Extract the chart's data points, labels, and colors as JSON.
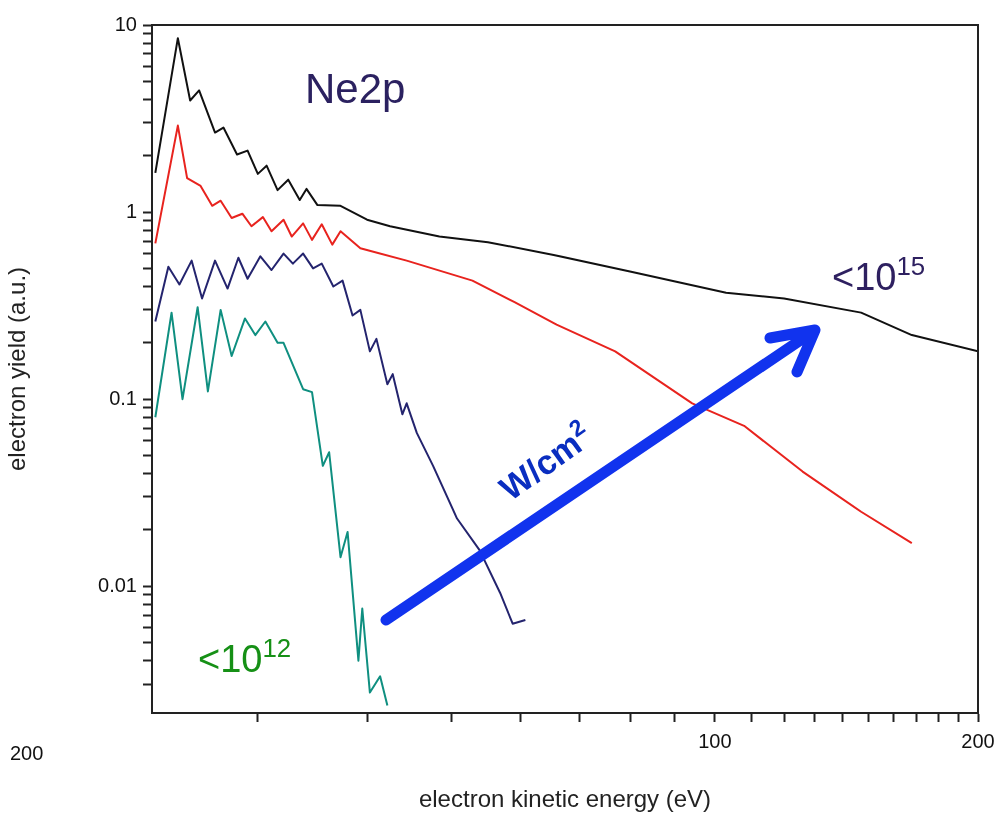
{
  "chart_data": {
    "type": "line",
    "xlabel": "electron kinetic energy (eV)",
    "ylabel": "electron yield (a.u.)",
    "log": "xy",
    "grid": false,
    "legend": false,
    "xlim": [
      22.7,
      200
    ],
    "ylim": [
      0.0021,
      10
    ],
    "xticks": [
      {
        "value": 30,
        "label": null
      },
      {
        "value": 40,
        "label": null
      },
      {
        "value": 50,
        "label": null
      },
      {
        "value": 60,
        "label": null
      },
      {
        "value": 70,
        "label": null
      },
      {
        "value": 80,
        "label": null
      },
      {
        "value": 90,
        "label": null
      },
      100,
      {
        "value": 110,
        "label": null
      },
      {
        "value": 120,
        "label": null
      },
      {
        "value": 130,
        "label": null
      },
      {
        "value": 140,
        "label": null
      },
      {
        "value": 150,
        "label": null
      },
      {
        "value": 160,
        "label": null
      },
      {
        "value": 170,
        "label": null
      },
      {
        "value": 180,
        "label": null
      },
      {
        "value": 190,
        "label": null
      },
      200
    ],
    "yticks": [
      {
        "value": 0.003,
        "label": null
      },
      {
        "value": 0.004,
        "label": null
      },
      {
        "value": 0.005,
        "label": null
      },
      {
        "value": 0.006,
        "label": null
      },
      {
        "value": 0.007,
        "label": null
      },
      {
        "value": 0.008,
        "label": null
      },
      {
        "value": 0.009,
        "label": null
      },
      0.01,
      {
        "value": 0.02,
        "label": null
      },
      {
        "value": 0.03,
        "label": null
      },
      {
        "value": 0.04,
        "label": null
      },
      {
        "value": 0.05,
        "label": null
      },
      {
        "value": 0.06,
        "label": null
      },
      {
        "value": 0.07,
        "label": null
      },
      {
        "value": 0.08,
        "label": null
      },
      {
        "value": 0.09,
        "label": null
      },
      0.1,
      {
        "value": 0.2,
        "label": null
      },
      {
        "value": 0.3,
        "label": null
      },
      {
        "value": 0.4,
        "label": null
      },
      {
        "value": 0.5,
        "label": null
      },
      {
        "value": 0.6,
        "label": null
      },
      {
        "value": 0.7,
        "label": null
      },
      {
        "value": 0.8,
        "label": null
      },
      {
        "value": 0.9,
        "label": null
      },
      1,
      {
        "value": 2,
        "label": null
      },
      {
        "value": 3,
        "label": null
      },
      {
        "value": 4,
        "label": null
      },
      {
        "value": 5,
        "label": null
      },
      {
        "value": 6,
        "label": null
      },
      {
        "value": 7,
        "label": null
      },
      {
        "value": 8,
        "label": null
      },
      {
        "value": 9,
        "label": null
      },
      10
    ],
    "annotations": [
      "Ne2p",
      "W/cm$^{2}$",
      "200"
    ],
    "series": [
      {
        "name": "<10$^{15}$",
        "color": "#111111",
        "x": [
          22.9,
          24.3,
          25.1,
          25.7,
          26.8,
          27.4,
          28.4,
          29.2,
          30.0,
          30.7,
          31.6,
          32.5,
          33.5,
          34.1,
          35.1,
          37.3,
          40.0,
          42.5,
          48.4,
          55.0,
          65.4,
          80.2,
          103,
          120,
          147,
          168,
          200
        ],
        "values": [
          1.62,
          8.5,
          3.95,
          4.47,
          2.66,
          2.83,
          2.03,
          2.13,
          1.6,
          1.77,
          1.31,
          1.49,
          1.16,
          1.33,
          1.09,
          1.08,
          0.91,
          0.84,
          0.74,
          0.69,
          0.59,
          0.48,
          0.37,
          0.345,
          0.29,
          0.22,
          0.18
        ]
      },
      {
        "color": "#e8231e",
        "x": [
          22.9,
          24.3,
          24.9,
          25.8,
          26.6,
          27.2,
          28.0,
          28.8,
          29.5,
          30.4,
          31.1,
          32.1,
          32.8,
          33.8,
          34.6,
          35.5,
          36.5,
          37.3,
          39.3,
          44.4,
          52.8,
          59.0,
          65.9,
          76.9,
          94.2,
          108,
          126,
          147,
          168
        ],
        "values": [
          0.68,
          2.9,
          1.52,
          1.38,
          1.08,
          1.15,
          0.93,
          0.98,
          0.84,
          0.94,
          0.79,
          0.91,
          0.74,
          0.87,
          0.71,
          0.86,
          0.67,
          0.79,
          0.64,
          0.55,
          0.43,
          0.33,
          0.25,
          0.18,
          0.095,
          0.072,
          0.041,
          0.025,
          0.017
        ]
      },
      {
        "color": "#24246e",
        "x": [
          22.9,
          23.7,
          24.4,
          25.2,
          25.9,
          26.8,
          27.7,
          28.5,
          29.2,
          30.2,
          31.1,
          32.1,
          32.9,
          33.8,
          34.7,
          35.5,
          36.6,
          37.5,
          38.5,
          39.3,
          40.3,
          41.0,
          42.2,
          42.8,
          43.9,
          44.4,
          45.6,
          47.6,
          50.7,
          53.8,
          56.8,
          58.7,
          60.7
        ],
        "values": [
          0.26,
          0.51,
          0.41,
          0.55,
          0.345,
          0.55,
          0.39,
          0.57,
          0.44,
          0.58,
          0.49,
          0.6,
          0.53,
          0.6,
          0.5,
          0.53,
          0.4,
          0.43,
          0.28,
          0.3,
          0.18,
          0.21,
          0.12,
          0.136,
          0.083,
          0.095,
          0.066,
          0.044,
          0.023,
          0.0156,
          0.0092,
          0.0063,
          0.0066
        ]
      },
      {
        "name": "<10$^{12}$",
        "color": "#0f8f80",
        "x": [
          22.9,
          23.9,
          24.6,
          25.6,
          26.3,
          27.2,
          28.0,
          29.0,
          29.8,
          30.6,
          31.6,
          32.1,
          33.8,
          34.6,
          35.6,
          36.2,
          37.3,
          38.0,
          39.1,
          39.5,
          40.3,
          41.4,
          42.2
        ],
        "values": [
          0.08,
          0.29,
          0.1,
          0.31,
          0.11,
          0.3,
          0.17,
          0.27,
          0.22,
          0.26,
          0.2,
          0.2,
          0.113,
          0.109,
          0.044,
          0.052,
          0.0143,
          0.0195,
          0.004,
          0.0076,
          0.0027,
          0.0033,
          0.0023
        ]
      }
    ]
  }
}
